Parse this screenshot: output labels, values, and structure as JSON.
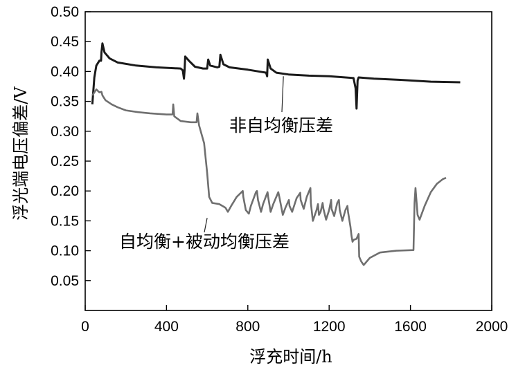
{
  "chart_data": {
    "type": "line",
    "title": "",
    "xlabel": "浮充时间/h",
    "ylabel": "浮光端电压偏差/V",
    "xlim": [
      0,
      2000
    ],
    "ylim": [
      0,
      0.5
    ],
    "x_ticks": [
      "0",
      "400",
      "800",
      "1200",
      "1600",
      "2000"
    ],
    "y_ticks": [
      "0.05",
      "0.10",
      "0.15",
      "0.20",
      "0.25",
      "0.30",
      "0.35",
      "0.40",
      "0.45",
      "0.50"
    ],
    "grid": false,
    "legend": "none",
    "annotations": [
      {
        "text": "非自均衡压差",
        "series": 0,
        "pointer_at": [
          975,
          0.392
        ]
      },
      {
        "text": "自均衡+被动均衡压差",
        "series": 1,
        "pointer_at": [
          600,
          0.155
        ]
      }
    ],
    "series": [
      {
        "name": "非自均衡压差",
        "color": "#1a1a1a",
        "points": [
          [
            35,
            0.345
          ],
          [
            45,
            0.39
          ],
          [
            55,
            0.41
          ],
          [
            70,
            0.418
          ],
          [
            78,
            0.418
          ],
          [
            80,
            0.432
          ],
          [
            85,
            0.447
          ],
          [
            95,
            0.432
          ],
          [
            120,
            0.422
          ],
          [
            160,
            0.415
          ],
          [
            250,
            0.41
          ],
          [
            350,
            0.407
          ],
          [
            470,
            0.405
          ],
          [
            480,
            0.402
          ],
          [
            486,
            0.388
          ],
          [
            489,
            0.402
          ],
          [
            492,
            0.425
          ],
          [
            510,
            0.418
          ],
          [
            540,
            0.408
          ],
          [
            580,
            0.405
          ],
          [
            600,
            0.405
          ],
          [
            605,
            0.42
          ],
          [
            615,
            0.41
          ],
          [
            650,
            0.407
          ],
          [
            660,
            0.408
          ],
          [
            665,
            0.428
          ],
          [
            680,
            0.412
          ],
          [
            710,
            0.407
          ],
          [
            800,
            0.403
          ],
          [
            890,
            0.398
          ],
          [
            895,
            0.392
          ],
          [
            898,
            0.42
          ],
          [
            912,
            0.405
          ],
          [
            940,
            0.398
          ],
          [
            1000,
            0.395
          ],
          [
            1100,
            0.393
          ],
          [
            1200,
            0.392
          ],
          [
            1320,
            0.389
          ],
          [
            1330,
            0.372
          ],
          [
            1335,
            0.338
          ],
          [
            1340,
            0.385
          ],
          [
            1345,
            0.39
          ],
          [
            1420,
            0.388
          ],
          [
            1550,
            0.386
          ],
          [
            1700,
            0.383
          ],
          [
            1845,
            0.382
          ]
        ]
      },
      {
        "name": "自均衡+被动均衡压差",
        "color": "#6f6f6f",
        "points": [
          [
            35,
            0.36
          ],
          [
            55,
            0.37
          ],
          [
            70,
            0.365
          ],
          [
            80,
            0.366
          ],
          [
            85,
            0.36
          ],
          [
            100,
            0.352
          ],
          [
            130,
            0.345
          ],
          [
            160,
            0.34
          ],
          [
            200,
            0.335
          ],
          [
            260,
            0.332
          ],
          [
            320,
            0.33
          ],
          [
            400,
            0.328
          ],
          [
            430,
            0.328
          ],
          [
            433,
            0.345
          ],
          [
            438,
            0.325
          ],
          [
            470,
            0.317
          ],
          [
            520,
            0.315
          ],
          [
            548,
            0.315
          ],
          [
            552,
            0.33
          ],
          [
            560,
            0.31
          ],
          [
            585,
            0.28
          ],
          [
            600,
            0.23
          ],
          [
            610,
            0.19
          ],
          [
            625,
            0.18
          ],
          [
            660,
            0.178
          ],
          [
            690,
            0.172
          ],
          [
            702,
            0.165
          ],
          [
            720,
            0.176
          ],
          [
            745,
            0.19
          ],
          [
            775,
            0.2
          ],
          [
            778,
            0.19
          ],
          [
            790,
            0.168
          ],
          [
            805,
            0.162
          ],
          [
            815,
            0.175
          ],
          [
            840,
            0.198
          ],
          [
            845,
            0.2
          ],
          [
            850,
            0.185
          ],
          [
            865,
            0.165
          ],
          [
            875,
            0.178
          ],
          [
            897,
            0.198
          ],
          [
            900,
            0.19
          ],
          [
            912,
            0.165
          ],
          [
            925,
            0.178
          ],
          [
            950,
            0.198
          ],
          [
            955,
            0.19
          ],
          [
            972,
            0.16
          ],
          [
            985,
            0.172
          ],
          [
            1002,
            0.185
          ],
          [
            1005,
            0.175
          ],
          [
            1018,
            0.165
          ],
          [
            1040,
            0.188
          ],
          [
            1058,
            0.197
          ],
          [
            1060,
            0.185
          ],
          [
            1075,
            0.17
          ],
          [
            1090,
            0.19
          ],
          [
            1108,
            0.205
          ],
          [
            1110,
            0.18
          ],
          [
            1120,
            0.15
          ],
          [
            1138,
            0.168
          ],
          [
            1145,
            0.178
          ],
          [
            1150,
            0.16
          ],
          [
            1158,
            0.165
          ],
          [
            1168,
            0.18
          ],
          [
            1172,
            0.17
          ],
          [
            1185,
            0.152
          ],
          [
            1200,
            0.168
          ],
          [
            1210,
            0.185
          ],
          [
            1212,
            0.17
          ],
          [
            1225,
            0.158
          ],
          [
            1240,
            0.18
          ],
          [
            1248,
            0.185
          ],
          [
            1252,
            0.168
          ],
          [
            1265,
            0.15
          ],
          [
            1280,
            0.168
          ],
          [
            1290,
            0.175
          ],
          [
            1293,
            0.165
          ],
          [
            1305,
            0.14
          ],
          [
            1310,
            0.125
          ],
          [
            1315,
            0.115
          ],
          [
            1320,
            0.118
          ],
          [
            1335,
            0.12
          ],
          [
            1345,
            0.128
          ],
          [
            1348,
            0.09
          ],
          [
            1358,
            0.082
          ],
          [
            1370,
            0.076
          ],
          [
            1400,
            0.088
          ],
          [
            1450,
            0.097
          ],
          [
            1530,
            0.1
          ],
          [
            1615,
            0.101
          ],
          [
            1620,
            0.18
          ],
          [
            1625,
            0.205
          ],
          [
            1635,
            0.16
          ],
          [
            1645,
            0.152
          ],
          [
            1670,
            0.175
          ],
          [
            1700,
            0.198
          ],
          [
            1730,
            0.212
          ],
          [
            1760,
            0.22
          ],
          [
            1775,
            0.222
          ]
        ]
      }
    ]
  }
}
